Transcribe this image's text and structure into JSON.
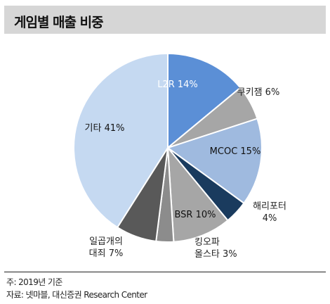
{
  "title": "게임별 매출 비중",
  "note": "주: 2019년 기준",
  "source": "자료: 넷마블, 대신증권 Research Center",
  "chart_data": {
    "type": "pie",
    "title": "게임별 매출 비중",
    "series": [
      {
        "name": "L2R",
        "label": "L2R 14%",
        "value": 14,
        "color": "#5b8fd6"
      },
      {
        "name": "쿠키잼",
        "label": "쿠키잼 6%",
        "value": 6,
        "color": "#a6a6a6"
      },
      {
        "name": "MCOC",
        "label": "MCOC 15%",
        "value": 15,
        "color": "#9fbadf"
      },
      {
        "name": "해리포터",
        "label": "해리포터 4%",
        "value": 4,
        "color": "#1a3b5e"
      },
      {
        "name": "BSR",
        "label": "BSR 10%",
        "value": 10,
        "color": "#a6a6a6"
      },
      {
        "name": "킹오파 올스타",
        "label": "킹오파 올스타 3%",
        "value": 3,
        "color": "#8c8c8c"
      },
      {
        "name": "일곱개의 대죄",
        "label": "일곱개의 대죄 7%",
        "value": 7,
        "color": "#595959"
      },
      {
        "name": "기타",
        "label": "기타 41%",
        "value": 41,
        "color": "#c5d9f1"
      }
    ]
  }
}
